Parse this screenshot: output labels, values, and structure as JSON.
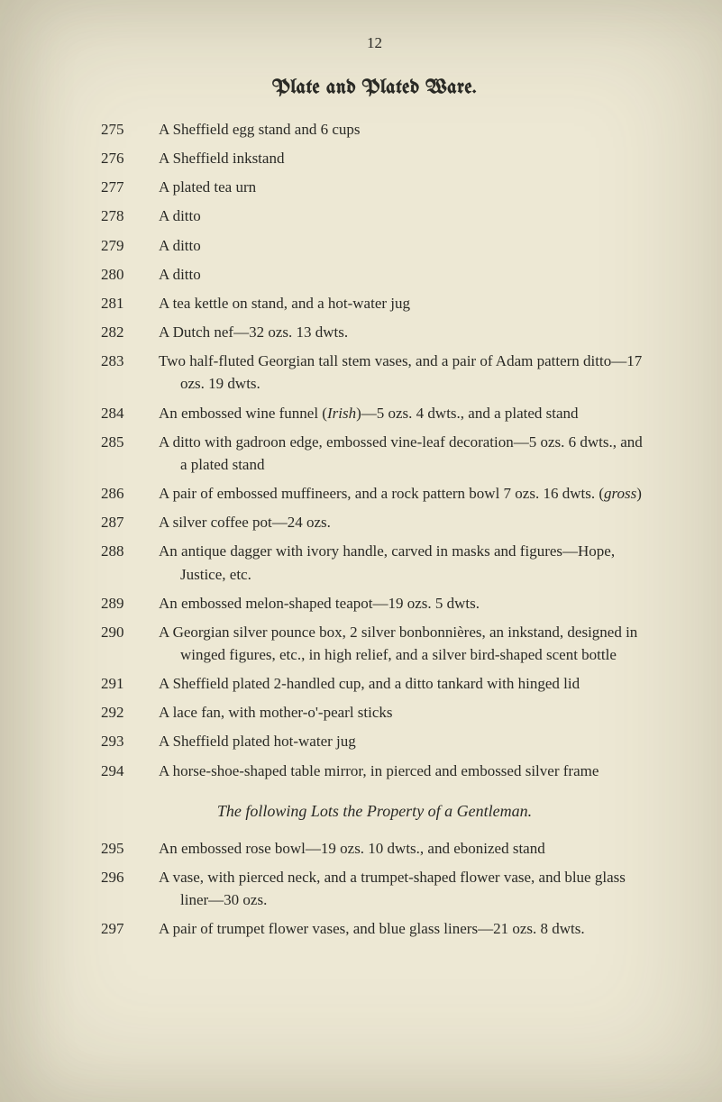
{
  "page_number": "12",
  "heading": "Plate and Plated Ware.",
  "entries": [
    {
      "lot": "275",
      "desc": "A Sheffield egg stand and 6 cups"
    },
    {
      "lot": "276",
      "desc": "A Sheffield inkstand"
    },
    {
      "lot": "277",
      "desc": "A plated tea urn"
    },
    {
      "lot": "278",
      "desc": "A ditto"
    },
    {
      "lot": "279",
      "desc": "A ditto"
    },
    {
      "lot": "280",
      "desc": "A ditto"
    },
    {
      "lot": "281",
      "desc": "A tea kettle on stand, and a hot-water jug"
    },
    {
      "lot": "282",
      "desc": "A Dutch nef—32 ozs. 13 dwts."
    },
    {
      "lot": "283",
      "desc": "Two half-fluted Georgian tall stem vases, and a pair of Adam pattern ditto—17 ozs. 19 dwts."
    },
    {
      "lot": "284",
      "desc_pre": "An embossed wine funnel (",
      "desc_ital": "Irish",
      "desc_post": ")—5 ozs. 4 dwts., and a plated stand"
    },
    {
      "lot": "285",
      "desc": "A ditto with gadroon edge, embossed vine-leaf decor­ation—5 ozs. 6 dwts., and a plated stand"
    },
    {
      "lot": "286",
      "desc_pre": "A pair of embossed muffineers, and a rock pattern bowl 7 ozs. 16 dwts. (",
      "desc_ital": "gross",
      "desc_post": ")"
    },
    {
      "lot": "287",
      "desc": "A silver coffee pot—24 ozs."
    },
    {
      "lot": "288",
      "desc": "An antique dagger with ivory handle, carved in masks and figures—Hope, Justice, etc."
    },
    {
      "lot": "289",
      "desc": "An embossed melon-shaped teapot—19 ozs. 5 dwts."
    },
    {
      "lot": "290",
      "desc": "A Georgian silver pounce box, 2 silver bonbonnières, an inkstand, designed in winged figures, etc., in high relief, and a silver bird-shaped scent bottle"
    },
    {
      "lot": "291",
      "desc": "A Sheffield plated 2-handled cup, and a ditto tankard with hinged lid"
    },
    {
      "lot": "292",
      "desc": "A lace fan, with mother-o'-pearl sticks"
    },
    {
      "lot": "293",
      "desc": "A Sheffield plated hot-water jug"
    },
    {
      "lot": "294",
      "desc": "A horse-shoe-shaped table mirror, in pierced and em­bossed silver frame"
    }
  ],
  "subheading": "The following Lots the Property of a Gentleman.",
  "entries2": [
    {
      "lot": "295",
      "desc": "An embossed rose bowl—19 ozs. 10 dwts., and ebonized stand"
    },
    {
      "lot": "296",
      "desc": "A vase, with pierced neck, and a trumpet-shaped flower vase, and blue glass liner—30 ozs."
    },
    {
      "lot": "297",
      "desc": "A pair of trumpet flower vases, and blue glass liners—21 ozs. 8 dwts."
    }
  ],
  "colors": {
    "paper": "#ede8d4",
    "ink": "#2a2a26"
  },
  "fonts": {
    "body_size_pt": 17,
    "heading_size_pt": 22,
    "subheading_size_pt": 18
  }
}
